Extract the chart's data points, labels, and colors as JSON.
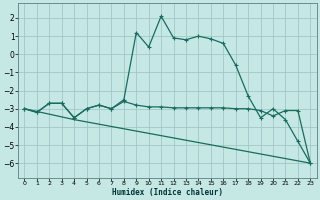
{
  "xlabel": "Humidex (Indice chaleur)",
  "bg_color": "#c5e8e5",
  "grid_color": "#a0c8c4",
  "line_color": "#1a6b60",
  "xlim": [
    -0.5,
    23.5
  ],
  "ylim": [
    -6.8,
    2.8
  ],
  "yticks": [
    -6,
    -5,
    -4,
    -3,
    -2,
    -1,
    0,
    1,
    2
  ],
  "xticks": [
    0,
    1,
    2,
    3,
    4,
    5,
    6,
    7,
    8,
    9,
    10,
    11,
    12,
    13,
    14,
    15,
    16,
    17,
    18,
    19,
    20,
    21,
    22,
    23
  ],
  "line1_x": [
    0,
    1,
    2,
    3,
    4,
    5,
    6,
    7,
    8,
    9,
    10,
    11,
    12,
    13,
    14,
    15,
    16,
    17,
    18,
    19,
    20,
    21,
    22,
    23
  ],
  "line1_y": [
    -3.0,
    -3.2,
    -2.7,
    -2.7,
    -3.5,
    -3.0,
    -2.8,
    -3.0,
    -2.5,
    1.2,
    0.4,
    2.1,
    0.9,
    0.8,
    1.0,
    0.85,
    0.6,
    -0.6,
    -2.3,
    -3.5,
    -3.0,
    -3.6,
    -4.8,
    -6.0
  ],
  "line2_x": [
    0,
    1,
    2,
    3,
    4,
    5,
    6,
    7,
    8,
    9,
    10,
    11,
    12,
    13,
    14,
    15,
    16,
    17,
    18,
    19,
    20,
    21,
    22,
    23
  ],
  "line2_y": [
    -3.0,
    -3.2,
    -2.7,
    -2.7,
    -3.5,
    -3.0,
    -2.8,
    -3.0,
    -2.6,
    -2.8,
    -2.9,
    -2.9,
    -2.95,
    -2.95,
    -2.95,
    -2.95,
    -2.95,
    -3.0,
    -3.0,
    -3.1,
    -3.4,
    -3.1,
    -3.1,
    -6.0
  ],
  "line3_x": [
    0,
    4,
    23
  ],
  "line3_y": [
    -3.0,
    -3.6,
    -6.0
  ]
}
